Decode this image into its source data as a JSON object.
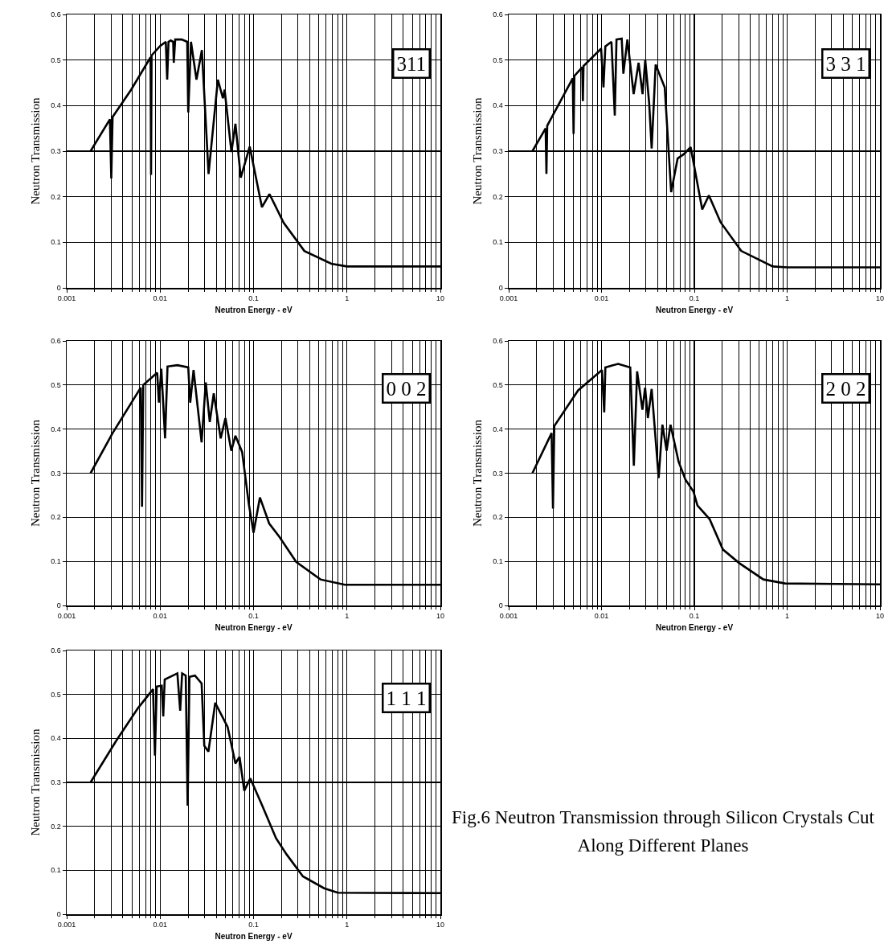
{
  "chart_data": [
    {
      "type": "line",
      "xlabel": "Neutron Energy - eV",
      "ylabel": "Neutron Transmission",
      "annotations": [
        "311"
      ],
      "log": "x",
      "grid": true,
      "marker": "none",
      "line_style": "solid",
      "color": "#000000",
      "xlim": [
        0.001,
        10
      ],
      "ylim": [
        0,
        0.6
      ],
      "xticks": [
        0.001,
        0.01,
        0.1,
        1,
        10
      ],
      "yticks": [
        0,
        0.1,
        0.2,
        0.3,
        0.4,
        0.5,
        0.6
      ],
      "x": [
        0.0018,
        0.0029,
        0.003,
        0.0031,
        0.0049,
        0.0079,
        0.008,
        0.0081,
        0.01,
        0.0115,
        0.0119,
        0.0123,
        0.013,
        0.0138,
        0.014,
        0.0145,
        0.017,
        0.0195,
        0.02,
        0.0214,
        0.0245,
        0.028,
        0.033,
        0.0415,
        0.047,
        0.049,
        0.058,
        0.064,
        0.073,
        0.091,
        0.123,
        0.148,
        0.21,
        0.35,
        0.68,
        1,
        10
      ],
      "values": [
        0.3,
        0.37,
        0.24,
        0.375,
        0.435,
        0.506,
        0.248,
        0.51,
        0.531,
        0.54,
        0.457,
        0.54,
        0.543,
        0.54,
        0.494,
        0.545,
        0.545,
        0.54,
        0.385,
        0.54,
        0.457,
        0.522,
        0.25,
        0.457,
        0.416,
        0.435,
        0.298,
        0.36,
        0.242,
        0.31,
        0.177,
        0.206,
        0.143,
        0.081,
        0.053,
        0.047,
        0.047
      ]
    },
    {
      "type": "line",
      "xlabel": "Neutron Energy - eV",
      "ylabel": "Neutron Transmission",
      "annotations": [
        "3 3 1"
      ],
      "log": "x",
      "grid": true,
      "marker": "none",
      "line_style": "solid",
      "color": "#000000",
      "xlim": [
        0.001,
        10
      ],
      "ylim": [
        0,
        0.6
      ],
      "xticks": [
        0.001,
        0.01,
        0.1,
        1,
        10
      ],
      "yticks": [
        0,
        0.1,
        0.2,
        0.3,
        0.4,
        0.5,
        0.6
      ],
      "x": [
        0.0018,
        0.0025,
        0.00255,
        0.0026,
        0.0049,
        0.005,
        0.0051,
        0.0062,
        0.0063,
        0.0064,
        0.0099,
        0.0105,
        0.011,
        0.0128,
        0.0139,
        0.0145,
        0.0165,
        0.0172,
        0.019,
        0.0207,
        0.0222,
        0.0251,
        0.0277,
        0.0296,
        0.0326,
        0.0347,
        0.0383,
        0.048,
        0.0563,
        0.0661,
        0.0777,
        0.0913,
        0.1217,
        0.1435,
        0.192,
        0.32,
        0.7,
        1,
        10
      ],
      "values": [
        0.3,
        0.35,
        0.25,
        0.356,
        0.46,
        0.338,
        0.465,
        0.484,
        0.41,
        0.487,
        0.525,
        0.44,
        0.53,
        0.54,
        0.378,
        0.545,
        0.547,
        0.47,
        0.545,
        0.48,
        0.425,
        0.494,
        0.425,
        0.5,
        0.406,
        0.306,
        0.49,
        0.44,
        0.21,
        0.284,
        0.294,
        0.309,
        0.172,
        0.203,
        0.144,
        0.081,
        0.047,
        0.045,
        0.045
      ]
    },
    {
      "type": "line",
      "xlabel": "Neutron Energy - eV",
      "ylabel": "Neutron Transmission",
      "annotations": [
        "0 0 2"
      ],
      "log": "x",
      "grid": true,
      "marker": "none",
      "line_style": "solid",
      "color": "#000000",
      "xlim": [
        0.001,
        10
      ],
      "ylim": [
        0,
        0.6
      ],
      "xticks": [
        0.001,
        0.01,
        0.1,
        1,
        10
      ],
      "yticks": [
        0,
        0.1,
        0.2,
        0.3,
        0.4,
        0.5,
        0.6
      ],
      "x": [
        0.0018,
        0.0031,
        0.0062,
        0.0064,
        0.0066,
        0.0093,
        0.0097,
        0.0103,
        0.0113,
        0.012,
        0.0153,
        0.02,
        0.021,
        0.0228,
        0.0278,
        0.0308,
        0.034,
        0.0375,
        0.0445,
        0.05,
        0.0578,
        0.064,
        0.0755,
        0.089,
        0.1,
        0.117,
        0.147,
        0.19,
        0.286,
        0.52,
        0.95,
        10
      ],
      "values": [
        0.3,
        0.391,
        0.494,
        0.224,
        0.5,
        0.528,
        0.46,
        0.537,
        0.379,
        0.542,
        0.545,
        0.54,
        0.46,
        0.534,
        0.37,
        0.506,
        0.416,
        0.481,
        0.379,
        0.425,
        0.351,
        0.385,
        0.348,
        0.23,
        0.165,
        0.245,
        0.186,
        0.155,
        0.099,
        0.059,
        0.047,
        0.047
      ]
    },
    {
      "type": "line",
      "xlabel": "Neutron Energy - eV",
      "ylabel": "Neutron Transmission",
      "annotations": [
        "2 0 2"
      ],
      "log": "x",
      "grid": true,
      "marker": "none",
      "line_style": "solid",
      "color": "#000000",
      "xlim": [
        0.001,
        10
      ],
      "ylim": [
        0,
        0.6
      ],
      "xticks": [
        0.001,
        0.01,
        0.1,
        1,
        10
      ],
      "yticks": [
        0,
        0.1,
        0.2,
        0.3,
        0.4,
        0.5,
        0.6
      ],
      "x": [
        0.0018,
        0.0029,
        0.003,
        0.0031,
        0.0056,
        0.0101,
        0.0107,
        0.011,
        0.0151,
        0.0204,
        0.0223,
        0.0242,
        0.0276,
        0.0295,
        0.0316,
        0.0347,
        0.0413,
        0.0453,
        0.0503,
        0.0554,
        0.0677,
        0.08,
        0.098,
        0.108,
        0.146,
        0.203,
        0.305,
        0.555,
        0.95,
        10
      ],
      "values": [
        0.3,
        0.391,
        0.22,
        0.407,
        0.488,
        0.534,
        0.438,
        0.54,
        0.548,
        0.54,
        0.317,
        0.531,
        0.444,
        0.494,
        0.425,
        0.491,
        0.289,
        0.41,
        0.351,
        0.41,
        0.326,
        0.286,
        0.258,
        0.227,
        0.196,
        0.127,
        0.096,
        0.059,
        0.05,
        0.048
      ]
    },
    {
      "type": "line",
      "xlabel": "Neutron Energy - eV",
      "ylabel": "Neutron Transmission",
      "annotations": [
        "1 1 1",
        "Fig.6 Neutron Transmission through Silicon Crystals Cut Along Different Planes"
      ],
      "log": "x",
      "grid": true,
      "marker": "none",
      "line_style": "solid",
      "color": "#000000",
      "xlim": [
        0.001,
        10
      ],
      "ylim": [
        0,
        0.6
      ],
      "xticks": [
        0.001,
        0.01,
        0.1,
        1,
        10
      ],
      "yticks": [
        0,
        0.1,
        0.2,
        0.3,
        0.4,
        0.5,
        0.6
      ],
      "x": [
        0.0018,
        0.0034,
        0.0058,
        0.0084,
        0.0088,
        0.0092,
        0.0104,
        0.0108,
        0.0112,
        0.0153,
        0.0164,
        0.0172,
        0.0188,
        0.0197,
        0.0206,
        0.0236,
        0.0278,
        0.0297,
        0.0329,
        0.0389,
        0.0528,
        0.064,
        0.0708,
        0.0795,
        0.0923,
        0.124,
        0.174,
        0.226,
        0.338,
        0.57,
        0.8,
        10
      ],
      "values": [
        0.3,
        0.395,
        0.469,
        0.512,
        0.361,
        0.518,
        0.52,
        0.45,
        0.534,
        0.548,
        0.463,
        0.548,
        0.543,
        0.247,
        0.54,
        0.543,
        0.525,
        0.383,
        0.37,
        0.481,
        0.426,
        0.343,
        0.358,
        0.281,
        0.309,
        0.247,
        0.173,
        0.136,
        0.086,
        0.059,
        0.049,
        0.048
      ]
    }
  ]
}
